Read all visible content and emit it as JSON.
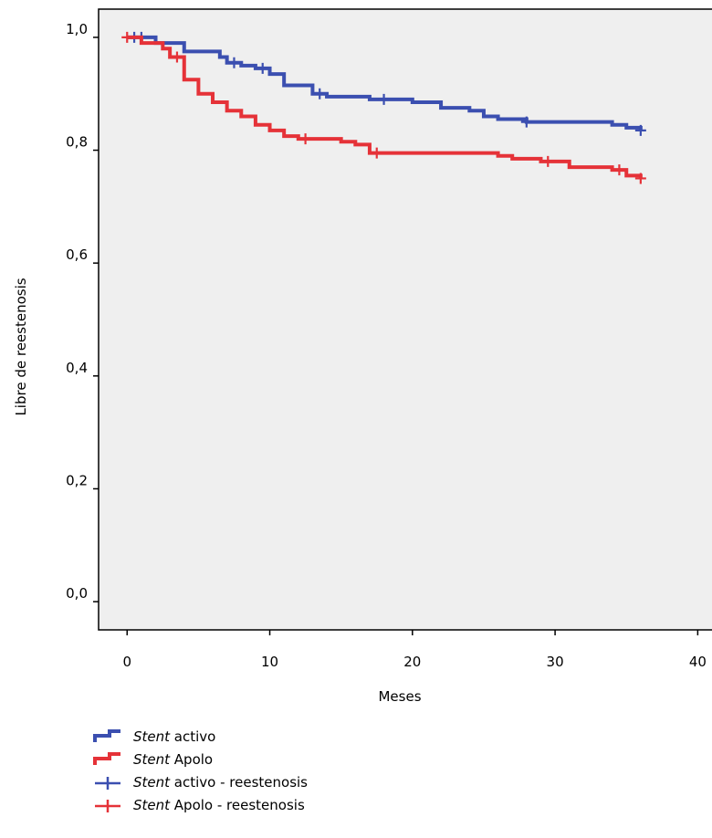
{
  "chart_data": {
    "type": "line",
    "subtype": "kaplan-meier",
    "xlabel": "Meses",
    "ylabel": "Libre de reestenosis",
    "xlim": [
      -2,
      41
    ],
    "ylim": [
      -0.05,
      1.05
    ],
    "xticks": [
      0,
      10,
      20,
      30,
      40
    ],
    "xtick_labels": [
      "0",
      "10",
      "20",
      "30",
      "40"
    ],
    "yticks": [
      0.0,
      0.2,
      0.4,
      0.6,
      0.8,
      1.0
    ],
    "ytick_labels": [
      "0,0",
      "0,2",
      "0,4",
      "0,6",
      "0,8",
      "1,0"
    ],
    "grid": false,
    "plot_background": "#efefef",
    "legend_position": "bottom-left",
    "series": [
      {
        "name": "Stent activo",
        "name_italic": "Stent",
        "name_rest": " activo",
        "color": "#3b4fb0",
        "steps": [
          [
            0,
            1.0
          ],
          [
            2,
            0.99
          ],
          [
            4,
            0.975
          ],
          [
            6.5,
            0.965
          ],
          [
            7,
            0.955
          ],
          [
            8,
            0.95
          ],
          [
            9,
            0.945
          ],
          [
            10,
            0.935
          ],
          [
            11,
            0.915
          ],
          [
            13,
            0.9
          ],
          [
            14,
            0.895
          ],
          [
            17,
            0.89
          ],
          [
            20,
            0.885
          ],
          [
            22,
            0.875
          ],
          [
            24,
            0.87
          ],
          [
            25,
            0.86
          ],
          [
            26,
            0.855
          ],
          [
            28,
            0.85
          ],
          [
            34,
            0.845
          ],
          [
            35,
            0.84
          ],
          [
            36,
            0.835
          ]
        ],
        "censor_x": [
          0.5,
          1,
          7.5,
          9.5,
          13.5,
          18,
          28,
          36
        ]
      },
      {
        "name": "Stent Apolo",
        "name_italic": "Stent",
        "name_rest": " Apolo",
        "color": "#e53238",
        "steps": [
          [
            0,
            1.0
          ],
          [
            1,
            0.99
          ],
          [
            2.5,
            0.98
          ],
          [
            3,
            0.965
          ],
          [
            4,
            0.925
          ],
          [
            5,
            0.9
          ],
          [
            6,
            0.885
          ],
          [
            7,
            0.87
          ],
          [
            8,
            0.86
          ],
          [
            9,
            0.845
          ],
          [
            10,
            0.835
          ],
          [
            11,
            0.825
          ],
          [
            12,
            0.82
          ],
          [
            15,
            0.815
          ],
          [
            16,
            0.81
          ],
          [
            17,
            0.795
          ],
          [
            26,
            0.79
          ],
          [
            27,
            0.785
          ],
          [
            29,
            0.78
          ],
          [
            31,
            0.77
          ],
          [
            34,
            0.765
          ],
          [
            35,
            0.755
          ],
          [
            36,
            0.75
          ]
        ],
        "censor_x": [
          0,
          3.5,
          12.5,
          17.5,
          29.5,
          34.5,
          36
        ]
      }
    ],
    "legend": [
      {
        "italic": "Stent",
        "rest": " activo",
        "symbol": "step",
        "color": "#3b4fb0"
      },
      {
        "italic": "Stent",
        "rest": " Apolo",
        "symbol": "step",
        "color": "#e53238"
      },
      {
        "italic": "Stent",
        "rest": " activo - reestenosis",
        "symbol": "cross",
        "color": "#3b4fb0"
      },
      {
        "italic": "Stent",
        "rest": " Apolo - reestenosis",
        "symbol": "cross",
        "color": "#e53238"
      }
    ]
  }
}
